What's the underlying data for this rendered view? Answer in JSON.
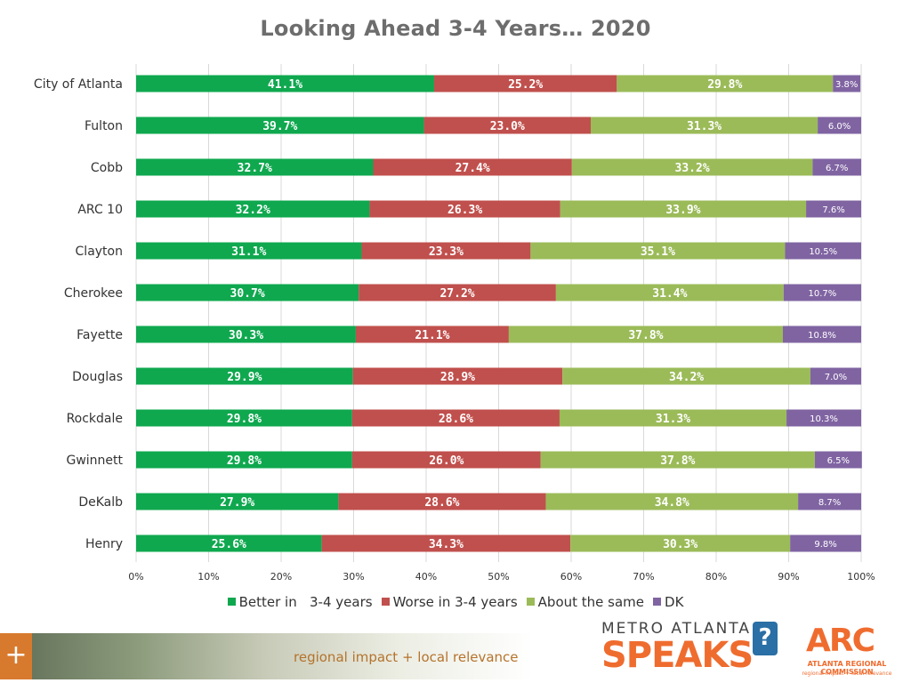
{
  "chart_data": {
    "type": "bar",
    "orientation": "horizontal",
    "stacked": true,
    "title": "Looking Ahead 3-4 Years… 2020",
    "categories": [
      "City of Atlanta",
      "Fulton",
      "Cobb",
      "ARC 10",
      "Clayton",
      "Cherokee",
      "Fayette",
      "Douglas",
      "Rockdale",
      "Gwinnett",
      "DeKalb",
      "Henry"
    ],
    "series": [
      {
        "name": "Better in   3-4 years",
        "color": "#0fa84f",
        "values": [
          41.1,
          39.7,
          32.7,
          32.2,
          31.1,
          30.7,
          30.3,
          29.9,
          29.8,
          29.8,
          27.9,
          25.6
        ],
        "labels": [
          "41.1%",
          "39.7%",
          "32.7%",
          "32.2%",
          "31.1%",
          "30.7%",
          "30.3%",
          "29.9%",
          "29.8%",
          "29.8%",
          "27.9%",
          "25.6%"
        ]
      },
      {
        "name": "Worse in 3-4 years",
        "color": "#c0504d",
        "values": [
          25.2,
          23.0,
          27.4,
          26.3,
          23.3,
          27.2,
          21.1,
          28.9,
          28.6,
          26.0,
          28.6,
          34.3
        ],
        "labels": [
          "25.2%",
          "23.0%",
          "27.4%",
          "26.3%",
          "23.3%",
          "27.2%",
          "21.1%",
          "28.9%",
          "28.6%",
          "26.0%",
          "28.6%",
          "34.3%"
        ]
      },
      {
        "name": "About the same",
        "color": "#9bbb59",
        "values": [
          29.8,
          31.3,
          33.2,
          33.9,
          35.1,
          31.4,
          37.8,
          34.2,
          31.3,
          37.8,
          34.8,
          30.3
        ],
        "labels": [
          "29.8%",
          "31.3%",
          "33.2%",
          "33.9%",
          "35.1%",
          "31.4%",
          "37.8%",
          "34.2%",
          "31.3%",
          "37.8%",
          "34.8%",
          "30.3%"
        ]
      },
      {
        "name": "DK",
        "color": "#8064a2",
        "values": [
          3.8,
          6.0,
          6.7,
          7.6,
          10.5,
          10.7,
          10.8,
          7.0,
          10.3,
          6.5,
          8.7,
          9.8
        ],
        "labels": [
          "3.8%",
          "6.0%",
          "6.7%",
          "7.6%",
          "10.5%",
          "10.7%",
          "10.8%",
          "7.0%",
          "10.3%",
          "6.5%",
          "8.7%",
          "9.8%"
        ]
      }
    ],
    "xlim": [
      0,
      100
    ],
    "xticks": [
      "0%",
      "10%",
      "20%",
      "30%",
      "40%",
      "50%",
      "60%",
      "70%",
      "80%",
      "90%",
      "100%"
    ],
    "grid": true,
    "legend_position": "bottom"
  },
  "footer": {
    "tagline": "regional impact + local relevance",
    "plus": "+"
  },
  "logos": {
    "speaks_top": "METRO ATLANTA",
    "speaks_main": "SPEAKS",
    "speaks_bubble": "?",
    "arc_mark": "ARC",
    "arc_name": "ATLANTA REGIONAL COMMISSION",
    "arc_tagline": "regional impact + local relevance"
  }
}
